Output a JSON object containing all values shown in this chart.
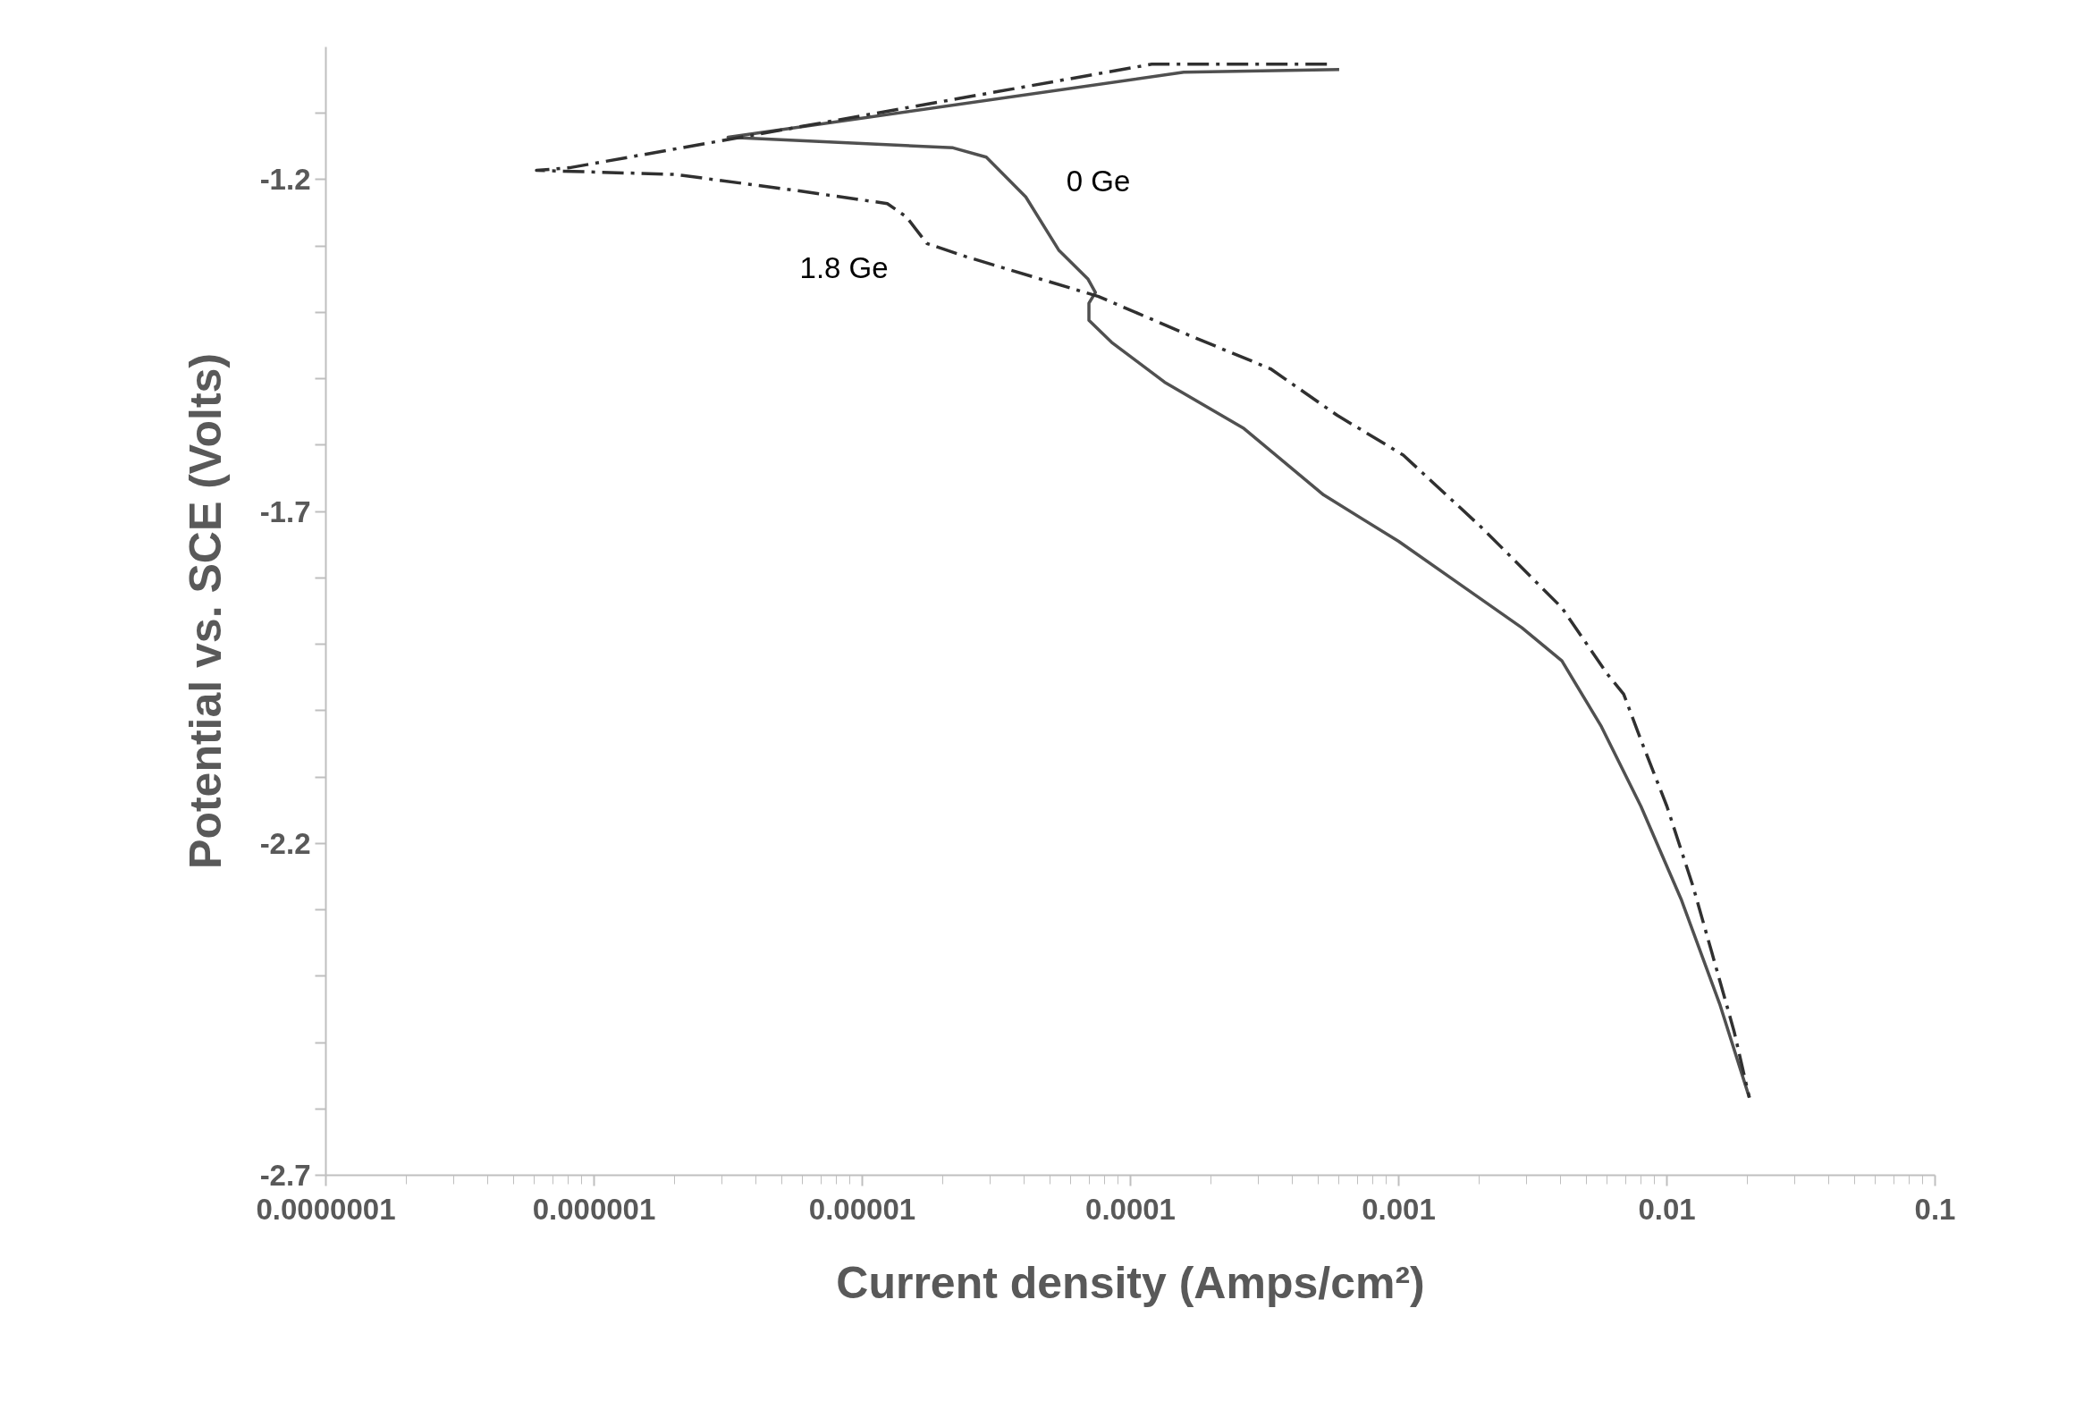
{
  "chart_data": {
    "type": "line",
    "xlabel": "Current density (Amps/cm²)",
    "ylabel": "Potential vs. SCE (Volts)",
    "log": "x",
    "grid": false,
    "legend": false,
    "marker": "none",
    "xlim": [
      1e-07,
      0.1
    ],
    "ylim": [
      -2.7,
      -1.0
    ],
    "xticks": [
      {
        "value": 1e-07,
        "label": "0.0000001"
      },
      {
        "value": 1e-06,
        "label": "0.000001"
      },
      {
        "value": 1e-05,
        "label": "0.00001"
      },
      {
        "value": 0.0001,
        "label": "0.0001"
      },
      {
        "value": 0.001,
        "label": "0.001"
      },
      {
        "value": 0.01,
        "label": "0.01"
      },
      {
        "value": 0.1,
        "label": "0.1"
      }
    ],
    "yticks": [
      {
        "value": -1.1,
        "label": null
      },
      -1.2,
      {
        "value": -1.3,
        "label": null
      },
      {
        "value": -1.4,
        "label": null
      },
      {
        "value": -1.5,
        "label": null
      },
      {
        "value": -1.6,
        "label": null
      },
      -1.7,
      {
        "value": -1.8,
        "label": null
      },
      {
        "value": -1.9,
        "label": null
      },
      {
        "value": -2.0,
        "label": null
      },
      {
        "value": -2.1,
        "label": null
      },
      -2.2,
      {
        "value": -2.3,
        "label": null
      },
      {
        "value": -2.4,
        "label": null
      },
      {
        "value": -2.5,
        "label": null
      },
      {
        "value": -2.6,
        "label": null
      },
      -2.7
    ],
    "series": [
      {
        "name": "0 Ge",
        "color": "#505050",
        "line_style": "solid",
        "x": [
          0.0006,
          0.000158,
          3.16e-06,
          2.18e-05,
          2.9e-05,
          4.07e-05,
          5.4e-05,
          6.95e-05,
          7.4e-05,
          7e-05,
          7e-05,
          8.5e-05,
          0.000134,
          0.000265,
          0.000525,
          0.001,
          0.00163,
          0.00288,
          0.00406,
          0.0057,
          0.008,
          0.0113,
          0.0158,
          0.0203
        ],
        "values": [
          -1.034,
          -1.038,
          -1.136,
          -1.152,
          -1.166,
          -1.226,
          -1.306,
          -1.35,
          -1.37,
          -1.386,
          -1.412,
          -1.445,
          -1.505,
          -1.575,
          -1.675,
          -1.745,
          -1.805,
          -1.875,
          -1.925,
          -2.024,
          -2.144,
          -2.284,
          -2.444,
          -2.583
        ]
      },
      {
        "name": "1.8 Ge",
        "color": "#303030",
        "line_style": "dashdot",
        "x": [
          0.00054,
          0.00012,
          8.1e-07,
          6.1e-07,
          2e-06,
          5.6e-06,
          1.24e-05,
          1.46e-05,
          1.74e-05,
          2.44e-05,
          4.3e-05,
          7.6e-05,
          0.000169,
          0.000333,
          0.00059,
          0.00104,
          0.00205,
          0.00406,
          0.006,
          0.0069,
          0.008,
          0.01,
          0.0125,
          0.0147,
          0.0178,
          0.0203
        ],
        "values": [
          -1.026,
          -1.026,
          -1.182,
          -1.186,
          -1.192,
          -1.216,
          -1.236,
          -1.256,
          -1.296,
          -1.316,
          -1.346,
          -1.376,
          -1.436,
          -1.485,
          -1.555,
          -1.615,
          -1.725,
          -1.845,
          -1.945,
          -1.975,
          -2.044,
          -2.144,
          -2.264,
          -2.364,
          -2.483,
          -2.583
        ]
      }
    ]
  }
}
